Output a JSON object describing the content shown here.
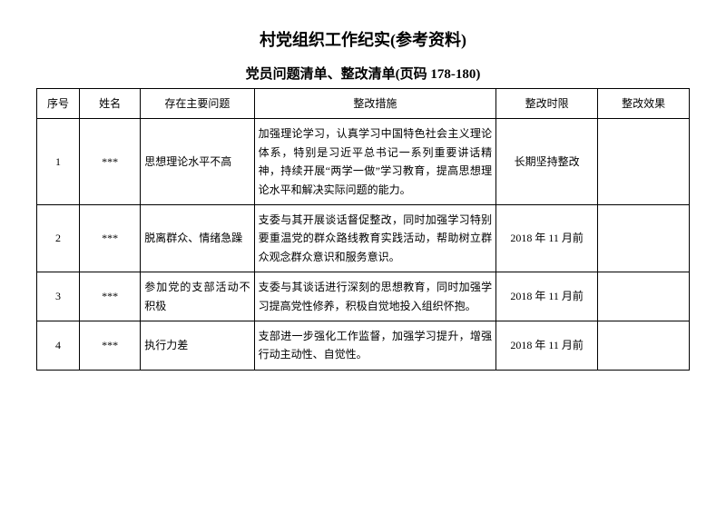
{
  "title": "村党组织工作纪实(参考资料)",
  "subtitle": "党员问题清单、整改清单(页码 178-180)",
  "columns": {
    "seq": "序号",
    "name": "姓名",
    "problem": "存在主要问题",
    "measure": "整改措施",
    "deadline": "整改时限",
    "effect": "整改效果"
  },
  "rows": [
    {
      "seq": "1",
      "name": "***",
      "problem": "思想理论水平不高",
      "measure": "加强理论学习，认真学习中国特色社会主义理论体系，特别是习近平总书记一系列重要讲话精神，持续开展“两学一做”学习教育，提高思想理论水平和解决实际问题的能力。",
      "deadline": "长期坚持整改",
      "effect": ""
    },
    {
      "seq": "2",
      "name": "***",
      "problem": "脱离群众、情绪急躁",
      "measure": "支委与其开展谈话督促整改，同时加强学习特别要重温党的群众路线教育实践活动，帮助树立群众观念群众意识和服务意识。",
      "deadline": "2018 年 11 月前",
      "effect": ""
    },
    {
      "seq": "3",
      "name": "***",
      "problem": "参加党的支部活动不积极",
      "measure": "支委与其谈话进行深刻的思想教育，同时加强学习提高党性修养，积极自觉地投入组织怀抱。",
      "deadline": "2018 年 11 月前",
      "effect": ""
    },
    {
      "seq": "4",
      "name": "***",
      "problem": "执行力差",
      "measure": "支部进一步强化工作监督，加强学习提升，增强行动主动性、自觉性。",
      "deadline": "2018 年 11 月前",
      "effect": ""
    }
  ],
  "styles": {
    "background_color": "#ffffff",
    "border_color": "#000000",
    "text_color": "#000000",
    "title_fontsize": 18,
    "subtitle_fontsize": 15,
    "cell_fontsize": 12,
    "font_family": "SimSun"
  }
}
